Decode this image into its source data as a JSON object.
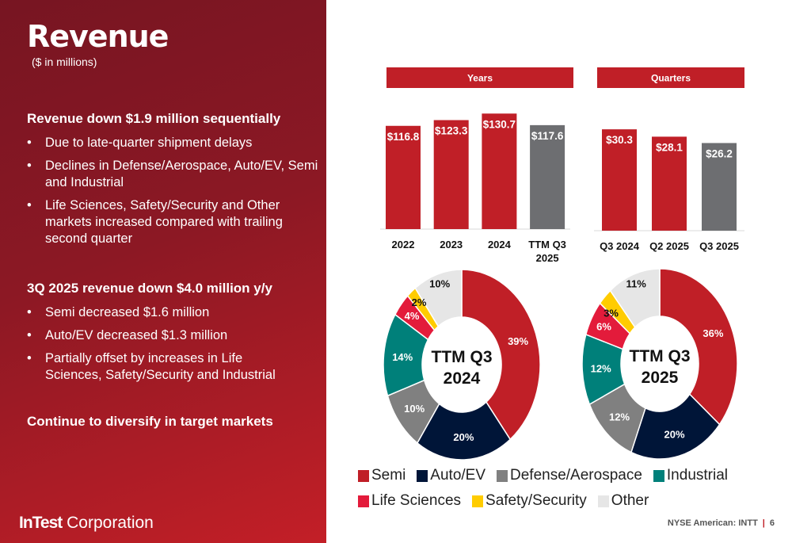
{
  "slide": {
    "title": "Revenue",
    "subtitle": "($ in millions)",
    "sections": [
      {
        "heading": "Revenue down $1.9 million sequentially",
        "bullets": [
          "Due to late-quarter shipment delays",
          "Declines in Defense/Aerospace, Auto/EV, Semi and Industrial",
          "Life Sciences, Safety/Security and Other markets increased compared with trailing second quarter"
        ]
      },
      {
        "heading": "3Q 2025 revenue down $4.0 million y/y",
        "bullets": [
          "Semi decreased $1.6 million",
          "Auto/EV decreased $1.3 million",
          "Partially offset by increases in Life Sciences, Safety/Security and Industrial"
        ]
      },
      {
        "heading": "Continue to diversify in target markets",
        "bullets": []
      }
    ],
    "logo_bold": "InTest",
    "logo_rest": " Corporation",
    "footer_ticker": "NYSE American: INTT",
    "footer_sep": "|",
    "page_number": "6"
  },
  "colors": {
    "semi": "#c01f27",
    "auto": "#001538",
    "defense": "#808080",
    "industrial": "#00807a",
    "life": "#e31b3b",
    "safety": "#ffcc00",
    "other": "#e6e6e6",
    "gray_bar": "#6d6e71"
  },
  "chart_data": [
    {
      "type": "bar",
      "title": "Years",
      "categories": [
        "2022",
        "2023",
        "2024",
        "TTM Q3 2025"
      ],
      "values": [
        116.8,
        123.3,
        130.7,
        117.6
      ],
      "labels": [
        "$116.8",
        "$123.3",
        "$130.7",
        "$117.6"
      ],
      "ylim": [
        0,
        140
      ]
    },
    {
      "type": "bar",
      "title": "Quarters",
      "categories": [
        "Q3 2024",
        "Q2 2025",
        "Q3 2025"
      ],
      "values": [
        30.3,
        28.1,
        26.2
      ],
      "labels": [
        "$30.3",
        "$28.1",
        "$26.2"
      ],
      "ylim": [
        0,
        35
      ]
    },
    {
      "type": "pie",
      "title": "TTM Q3 2024",
      "categories": [
        "Semi",
        "Auto/EV",
        "Defense/Aerospace",
        "Industrial",
        "Life Sciences",
        "Safety/Security",
        "Other"
      ],
      "values": [
        39,
        20,
        10,
        14,
        4,
        2,
        10
      ],
      "labels": [
        "39%",
        "20%",
        "10%",
        "14%",
        "4%",
        "2%",
        "10%"
      ]
    },
    {
      "type": "pie",
      "title": "TTM Q3 2025",
      "categories": [
        "Semi",
        "Auto/EV",
        "Defense/Aerospace",
        "Industrial",
        "Life Sciences",
        "Safety/Security",
        "Other"
      ],
      "values": [
        36,
        20,
        12,
        12,
        6,
        3,
        11
      ],
      "labels": [
        "36%",
        "20%",
        "12%",
        "12%",
        "6%",
        "3%",
        "11%"
      ]
    }
  ],
  "legend": [
    {
      "label": "Semi",
      "color": "#c01f27"
    },
    {
      "label": "Auto/EV",
      "color": "#001538"
    },
    {
      "label": "Defense/Aerospace",
      "color": "#808080"
    },
    {
      "label": "Industrial",
      "color": "#00807a"
    },
    {
      "label": "Life Sciences",
      "color": "#e31b3b"
    },
    {
      "label": "Safety/Security",
      "color": "#ffcc00"
    },
    {
      "label": "Other",
      "color": "#e6e6e6"
    }
  ]
}
